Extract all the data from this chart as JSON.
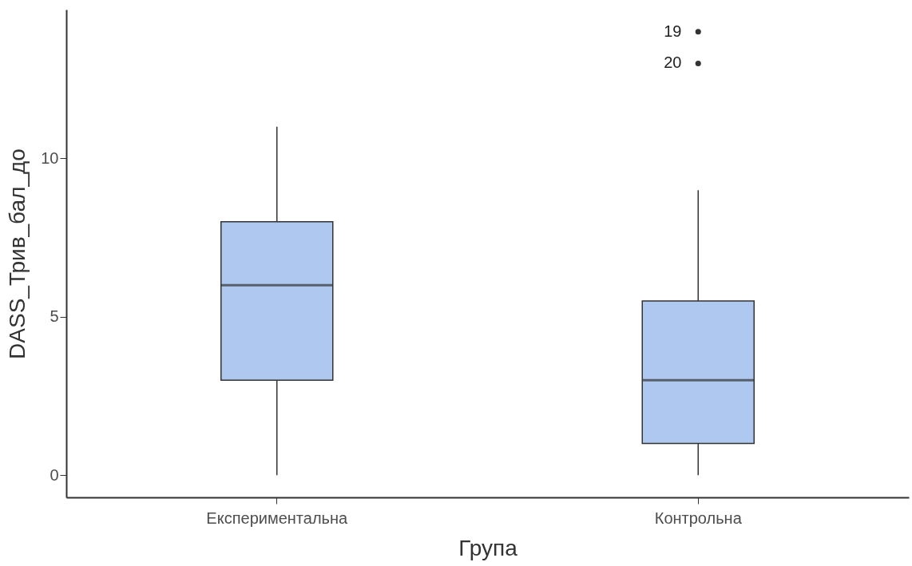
{
  "chart_data": {
    "type": "box",
    "xlabel": "Група",
    "ylabel": "DASS_Трив_бал_до",
    "categories": [
      "Експериментальна",
      "Контрольна"
    ],
    "boxes": [
      {
        "low": 0,
        "q1": 3,
        "median": 6,
        "q3": 8,
        "high": 11
      },
      {
        "low": 0,
        "q1": 1,
        "median": 3,
        "q3": 5.5,
        "high": 9,
        "outliers": [
          14,
          13
        ]
      }
    ],
    "color": "#aec8f0",
    "ylim": [
      -0.7,
      14.7
    ],
    "yticks": [
      0,
      5,
      10
    ],
    "grid": false,
    "annotations": [
      "19",
      "20"
    ]
  }
}
